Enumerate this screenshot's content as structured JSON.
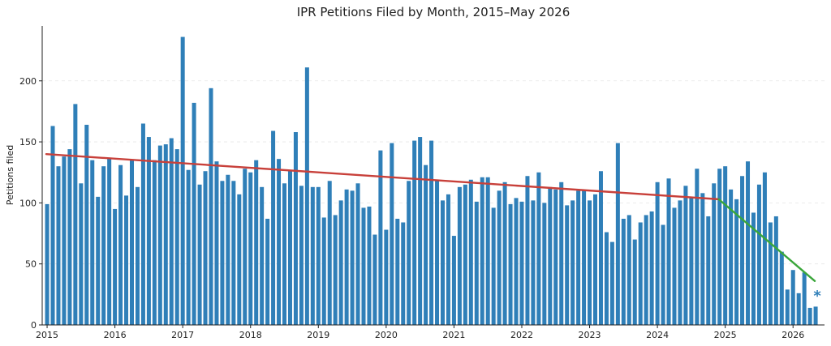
{
  "chart_data": {
    "type": "bar",
    "title": "IPR Petitions Filed by Month, 2015–May 2026",
    "xlabel": "",
    "ylabel": "Petitions filed",
    "x_start": "2015-01",
    "xlim": [
      "2015-01",
      "2026-06"
    ],
    "ylim": [
      0,
      245
    ],
    "x_ticks": [
      "2015",
      "2016",
      "2017",
      "2018",
      "2019",
      "2020",
      "2021",
      "2022",
      "2023",
      "2024",
      "2025",
      "2026"
    ],
    "y_ticks": [
      0,
      50,
      100,
      150,
      200
    ],
    "grid": "y",
    "bar_color": "#2f7fb8",
    "values": [
      99,
      163,
      130,
      138,
      144,
      181,
      116,
      164,
      135,
      105,
      130,
      137,
      95,
      131,
      106,
      135,
      113,
      165,
      154,
      135,
      147,
      148,
      153,
      144,
      236,
      127,
      182,
      115,
      126,
      194,
      134,
      118,
      123,
      118,
      107,
      128,
      125,
      135,
      113,
      87,
      159,
      136,
      116,
      126,
      158,
      114,
      211,
      113,
      113,
      88,
      118,
      90,
      102,
      111,
      110,
      116,
      96,
      97,
      74,
      143,
      78,
      149,
      87,
      84,
      118,
      151,
      154,
      131,
      151,
      118,
      102,
      107,
      73,
      113,
      115,
      119,
      101,
      121,
      121,
      96,
      110,
      117,
      99,
      104,
      101,
      122,
      102,
      125,
      100,
      113,
      111,
      117,
      98,
      102,
      110,
      110,
      102,
      107,
      126,
      76,
      68,
      149,
      87,
      90,
      70,
      84,
      90,
      93,
      117,
      82,
      120,
      96,
      102,
      114,
      104,
      128,
      108,
      89,
      116,
      128,
      130,
      111,
      103,
      122,
      134,
      92,
      115,
      125,
      84,
      89,
      60,
      29,
      45,
      26,
      43,
      14,
      15
    ],
    "trend_lines": [
      {
        "color": "#c8403a",
        "start": [
          "2015-01",
          140
        ],
        "end": [
          "2024-12",
          103
        ]
      },
      {
        "color": "#3aa63a",
        "start": [
          "2024-12",
          103
        ],
        "end": [
          "2026-05",
          36
        ]
      }
    ],
    "annotation": {
      "text": "*",
      "x": "2026-05",
      "y": 28,
      "color": "#2f7fb8"
    }
  }
}
